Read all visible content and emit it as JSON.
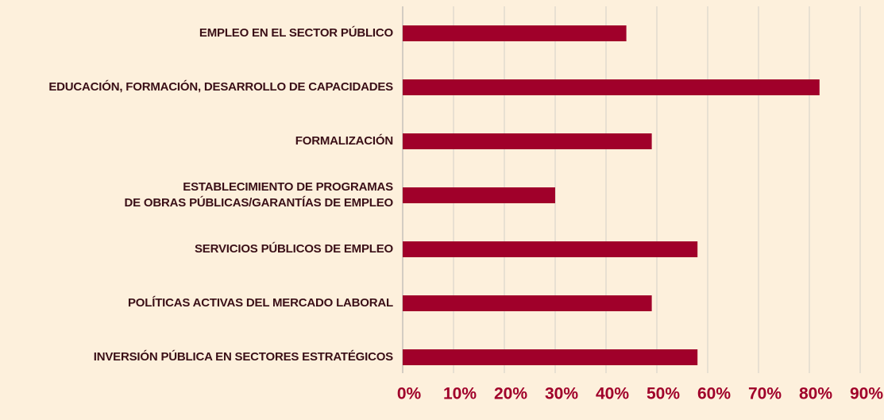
{
  "chart_data": {
    "type": "barh",
    "categories": [
      "EMPLEO EN EL SECTOR PÚBLICO",
      "EDUCACIÓN, FORMACIÓN, DESARROLLO DE CAPACIDADES",
      "FORMALIZACIÓN",
      "ESTABLECIMIENTO DE PROGRAMAS\nDE OBRAS PÚBLICAS/GARANTÍAS DE EMPLEO",
      "SERVICIOS PÚBLICOS DE EMPLEO",
      "POLÍTICAS ACTIVAS DEL MERCADO LABORAL",
      "INVERSIÓN PÚBLICA EN SECTORES ESTRATÉGICOS"
    ],
    "values": [
      44,
      82,
      49,
      30,
      58,
      49,
      58
    ],
    "color": "#a0002a",
    "xlim": [
      0,
      90
    ],
    "xticks": [
      {
        "value": 0,
        "label": "0%"
      },
      {
        "value": 10,
        "label": "10%"
      },
      {
        "value": 20,
        "label": "20%"
      },
      {
        "value": 30,
        "label": "30%"
      },
      {
        "value": 40,
        "label": "40%"
      },
      {
        "value": 50,
        "label": "50%"
      },
      {
        "value": 60,
        "label": "60%"
      },
      {
        "value": 70,
        "label": "70%"
      },
      {
        "value": 80,
        "label": "80%"
      },
      {
        "value": 90,
        "label": "90%"
      }
    ],
    "grid": true
  }
}
